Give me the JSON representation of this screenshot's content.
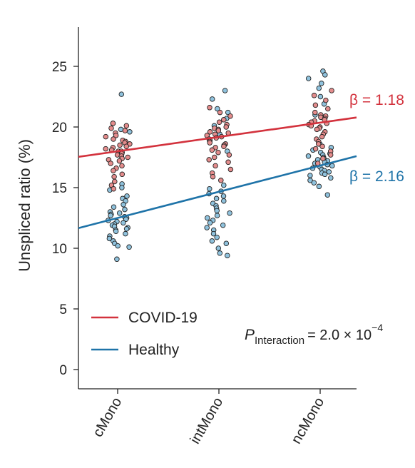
{
  "chart_data": {
    "type": "scatter",
    "ylabel": "Unspliced ratio (%)",
    "xlabel": "",
    "ylim": [
      0,
      27
    ],
    "yticks": [
      0,
      5,
      10,
      15,
      20,
      25
    ],
    "categories": [
      "cMono",
      "intMono",
      "ncMono"
    ],
    "grid": false,
    "legend_position": "lower-left",
    "series": [
      {
        "name": "COVID-19",
        "color": "#d3323d",
        "point_fill": "#e48c8c",
        "line": {
          "y_at_cMono": 18.0,
          "slope_per_category": 1.18
        },
        "beta_label": "β = 1.18",
        "points": {
          "cMono": [
            20.3,
            20.1,
            19.9,
            19.7,
            19.5,
            19.3,
            19.2,
            19.0,
            18.9,
            18.8,
            18.7,
            18.6,
            18.5,
            18.4,
            18.3,
            18.2,
            18.1,
            18.0,
            18.0,
            17.9,
            17.8,
            17.7,
            17.6,
            17.5,
            17.4,
            17.3,
            17.2,
            17.0,
            16.8,
            16.6,
            16.4,
            16.1,
            15.9,
            15.5,
            15.2,
            14.9
          ],
          "intMono": [
            21.6,
            21.2,
            20.9,
            20.6,
            20.4,
            20.2,
            20.0,
            19.9,
            19.8,
            19.7,
            19.6,
            19.5,
            19.4,
            19.3,
            19.2,
            19.1,
            19.0,
            18.9,
            18.8,
            18.7,
            18.6,
            18.5,
            18.4,
            18.3,
            18.1,
            17.9,
            17.7,
            17.5,
            17.3,
            17.1,
            16.8,
            16.5,
            16.2,
            15.9,
            15.6
          ],
          "ncMono": [
            23.0,
            22.6,
            22.2,
            21.8,
            21.5,
            21.2,
            21.0,
            20.9,
            20.8,
            20.7,
            20.6,
            20.5,
            20.4,
            20.3,
            20.2,
            20.1,
            20.0,
            19.9,
            19.8,
            19.6,
            19.4,
            19.2,
            19.0,
            18.8,
            18.6,
            18.4,
            18.2,
            18.0,
            17.7,
            17.4,
            17.0
          ]
        }
      },
      {
        "name": "Healthy",
        "color": "#1e73a8",
        "point_fill": "#8fc2dd",
        "line": {
          "y_at_cMono": 12.5,
          "slope_per_category": 2.16
        },
        "beta_label": "β = 2.16",
        "points": {
          "cMono": [
            22.7,
            20.3,
            19.8,
            19.6,
            15.3,
            15.0,
            14.8,
            14.3,
            14.1,
            13.9,
            13.6,
            13.4,
            13.2,
            13.0,
            12.9,
            12.8,
            12.7,
            12.6,
            12.5,
            12.4,
            12.3,
            12.2,
            12.1,
            12.0,
            11.9,
            11.8,
            11.7,
            11.6,
            11.5,
            11.4,
            11.2,
            11.0,
            10.8,
            10.6,
            10.4,
            10.2,
            10.1,
            9.1
          ],
          "intMono": [
            23.0,
            22.3,
            21.5,
            21.2,
            20.7,
            20.1,
            19.4,
            18.0,
            15.2,
            14.9,
            14.7,
            14.5,
            14.3,
            14.1,
            13.9,
            13.7,
            13.5,
            13.3,
            13.1,
            12.9,
            12.7,
            12.5,
            12.3,
            12.1,
            11.9,
            11.7,
            11.5,
            11.2,
            10.9,
            10.6,
            10.4,
            10.0,
            9.6,
            9.4
          ],
          "ncMono": [
            24.6,
            24.3,
            24.0,
            23.6,
            23.2,
            22.5,
            21.9,
            21.0,
            18.6,
            18.3,
            18.1,
            17.9,
            17.8,
            17.7,
            17.6,
            17.5,
            17.4,
            17.3,
            17.2,
            17.1,
            17.0,
            16.9,
            16.8,
            16.7,
            16.6,
            16.5,
            16.4,
            16.3,
            16.2,
            16.1,
            16.0,
            15.8,
            15.6,
            15.4,
            15.1,
            14.4
          ]
        }
      }
    ],
    "annotation": {
      "p_symbol": "P",
      "p_subscript": "Interaction",
      "p_value_text": "= 2.0 × 10",
      "p_exponent": "−4"
    }
  }
}
